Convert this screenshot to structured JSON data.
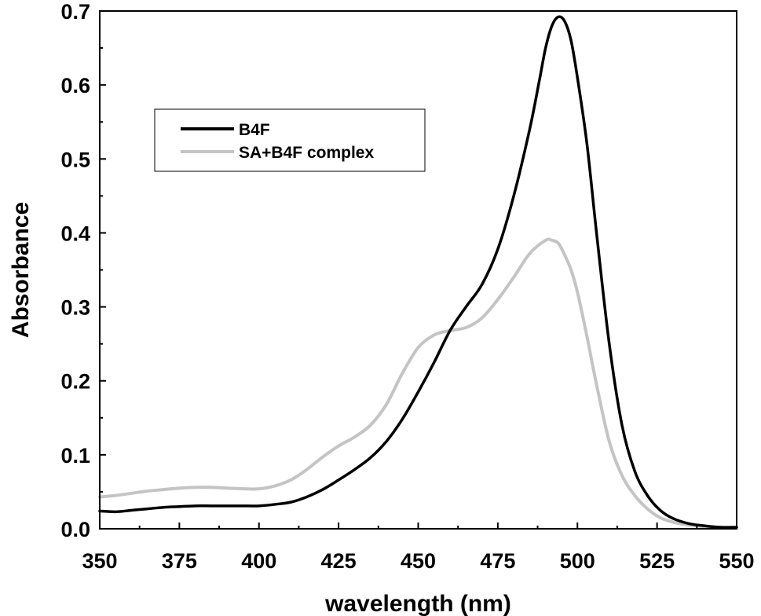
{
  "chart_data": {
    "type": "line",
    "title": "",
    "xlabel": "wavelength (nm)",
    "ylabel": "Absorbance",
    "xlim": [
      350,
      550
    ],
    "ylim": [
      0.0,
      0.7
    ],
    "x_ticks": [
      "350",
      "375",
      "400",
      "425",
      "450",
      "475",
      "500",
      "525",
      "550"
    ],
    "y_ticks": [
      "0.0",
      "0.1",
      "0.2",
      "0.3",
      "0.4",
      "0.5",
      "0.6",
      "0.7"
    ],
    "grid": false,
    "legend_position": "top-left",
    "series": [
      {
        "name": "B4F",
        "color": "#000000",
        "points": [
          [
            350,
            0.024
          ],
          [
            355,
            0.023
          ],
          [
            360,
            0.025
          ],
          [
            365,
            0.027
          ],
          [
            370,
            0.029
          ],
          [
            375,
            0.03
          ],
          [
            380,
            0.031
          ],
          [
            385,
            0.031
          ],
          [
            390,
            0.031
          ],
          [
            395,
            0.031
          ],
          [
            400,
            0.031
          ],
          [
            405,
            0.033
          ],
          [
            410,
            0.036
          ],
          [
            415,
            0.043
          ],
          [
            420,
            0.053
          ],
          [
            425,
            0.066
          ],
          [
            430,
            0.08
          ],
          [
            435,
            0.096
          ],
          [
            440,
            0.118
          ],
          [
            445,
            0.148
          ],
          [
            450,
            0.185
          ],
          [
            455,
            0.225
          ],
          [
            460,
            0.268
          ],
          [
            465,
            0.3
          ],
          [
            470,
            0.33
          ],
          [
            475,
            0.378
          ],
          [
            480,
            0.45
          ],
          [
            485,
            0.54
          ],
          [
            488,
            0.605
          ],
          [
            490,
            0.65
          ],
          [
            492,
            0.68
          ],
          [
            494,
            0.692
          ],
          [
            496,
            0.686
          ],
          [
            498,
            0.66
          ],
          [
            500,
            0.61
          ],
          [
            503,
            0.52
          ],
          [
            506,
            0.4
          ],
          [
            510,
            0.25
          ],
          [
            514,
            0.14
          ],
          [
            518,
            0.078
          ],
          [
            522,
            0.045
          ],
          [
            526,
            0.025
          ],
          [
            530,
            0.014
          ],
          [
            535,
            0.007
          ],
          [
            540,
            0.004
          ],
          [
            545,
            0.002
          ],
          [
            550,
            0.002
          ]
        ]
      },
      {
        "name": "SA+B4F complex",
        "color": "#c4c4c4",
        "points": [
          [
            350,
            0.043
          ],
          [
            355,
            0.045
          ],
          [
            360,
            0.048
          ],
          [
            365,
            0.051
          ],
          [
            370,
            0.053
          ],
          [
            375,
            0.055
          ],
          [
            380,
            0.056
          ],
          [
            385,
            0.056
          ],
          [
            390,
            0.055
          ],
          [
            395,
            0.054
          ],
          [
            400,
            0.054
          ],
          [
            405,
            0.058
          ],
          [
            410,
            0.066
          ],
          [
            415,
            0.08
          ],
          [
            420,
            0.097
          ],
          [
            425,
            0.112
          ],
          [
            430,
            0.124
          ],
          [
            435,
            0.14
          ],
          [
            440,
            0.168
          ],
          [
            445,
            0.21
          ],
          [
            450,
            0.245
          ],
          [
            455,
            0.262
          ],
          [
            460,
            0.268
          ],
          [
            465,
            0.272
          ],
          [
            470,
            0.285
          ],
          [
            475,
            0.31
          ],
          [
            480,
            0.34
          ],
          [
            485,
            0.372
          ],
          [
            490,
            0.39
          ],
          [
            492,
            0.39
          ],
          [
            494,
            0.386
          ],
          [
            496,
            0.37
          ],
          [
            498,
            0.35
          ],
          [
            500,
            0.32
          ],
          [
            503,
            0.26
          ],
          [
            506,
            0.195
          ],
          [
            510,
            0.118
          ],
          [
            514,
            0.072
          ],
          [
            518,
            0.045
          ],
          [
            522,
            0.027
          ],
          [
            526,
            0.015
          ],
          [
            530,
            0.009
          ],
          [
            535,
            0.005
          ],
          [
            540,
            0.003
          ],
          [
            545,
            0.002
          ],
          [
            550,
            0.002
          ]
        ]
      }
    ]
  }
}
